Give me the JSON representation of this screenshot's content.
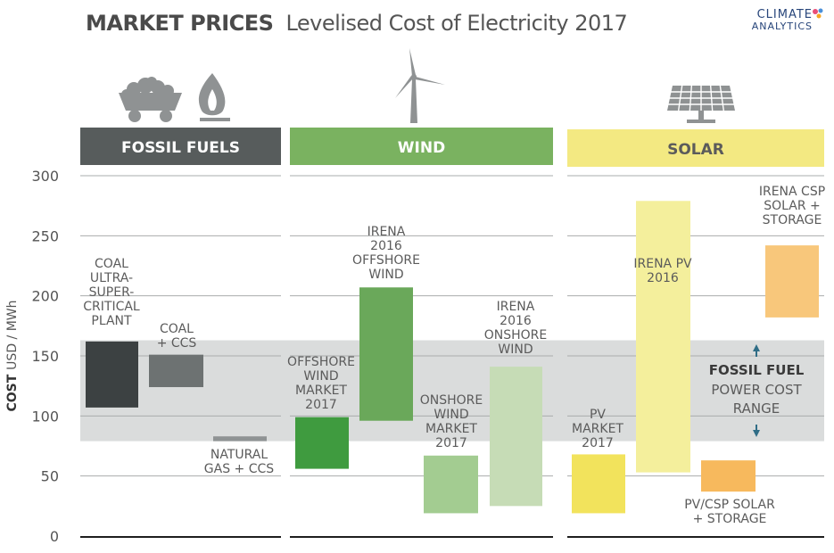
{
  "header": {
    "title_bold": "MARKET PRICES",
    "title_light": "Levelised Cost of Electricity 2017",
    "logo_line1": "CLIMATE",
    "logo_line2": "ANALYTICS"
  },
  "colors": {
    "fossil_header": "#575c5c",
    "wind_header": "#7ab260",
    "solar_header": "#f3e982",
    "band": "#dadcdc",
    "icon_gray": "#8f9293",
    "text": "#5b5b5b"
  },
  "chart_data": {
    "type": "range-bar",
    "title": "MARKET PRICES  Levelised Cost of Electricity 2017",
    "ylabel_bold": "COST",
    "ylabel": "USD / MWh",
    "ylim": [
      0,
      300
    ],
    "yticks": [
      0,
      50,
      100,
      150,
      200,
      250,
      300
    ],
    "groups": [
      {
        "name": "FOSSIL FUELS",
        "icons": [
          "coal-cart-icon",
          "gas-flame-icon"
        ]
      },
      {
        "name": "WIND",
        "icons": [
          "wind-turbine-icon"
        ]
      },
      {
        "name": "SOLAR",
        "icons": [
          "solar-panel-icon"
        ]
      }
    ],
    "fossil_fuel_range": {
      "low": 79,
      "high": 163,
      "label_bold": "FOSSIL FUEL",
      "label_lines": [
        "POWER COST",
        "RANGE"
      ]
    },
    "bars": [
      {
        "group": "FOSSIL FUELS",
        "label": [
          "COAL",
          "ULTRA-",
          "SUPER-",
          "CRITICAL",
          "PLANT"
        ],
        "low": 107,
        "high": 162,
        "color": "#3c4142"
      },
      {
        "group": "FOSSIL FUELS",
        "label": [
          "COAL",
          "+ CCS"
        ],
        "low": 124,
        "high": 151,
        "color": "#6d7272"
      },
      {
        "group": "FOSSIL FUELS",
        "label": [
          "NATURAL",
          "GAS + CCS"
        ],
        "low": 79,
        "high": 83,
        "color": "#8f9394"
      },
      {
        "group": "WIND",
        "label": [
          "OFFSHORE",
          "WIND",
          "MARKET",
          "2017"
        ],
        "low": 56,
        "high": 99,
        "color": "#3f9b3f"
      },
      {
        "group": "WIND",
        "label": [
          "IRENA",
          "2016",
          "OFFSHORE",
          "WIND"
        ],
        "low": 96,
        "high": 207,
        "color": "#6aa85a"
      },
      {
        "group": "WIND",
        "label": [
          "ONSHORE",
          "WIND",
          "MARKET",
          "2017"
        ],
        "low": 19,
        "high": 67,
        "color": "#a3cc91"
      },
      {
        "group": "WIND",
        "label": [
          "IRENA",
          "2016",
          "ONSHORE",
          "WIND"
        ],
        "low": 25,
        "high": 141,
        "color": "#c6dcb6"
      },
      {
        "group": "SOLAR",
        "label": [
          "PV",
          "MARKET",
          "2017"
        ],
        "low": 19,
        "high": 68,
        "color": "#f2e35c"
      },
      {
        "group": "SOLAR",
        "label": [
          "IRENA PV",
          "2016"
        ],
        "low": 53,
        "high": 279,
        "color": "#f4ef9c"
      },
      {
        "group": "SOLAR",
        "label": [
          "PV/CSP SOLAR",
          "+ STORAGE"
        ],
        "low": 37,
        "high": 63,
        "color": "#f7b95d"
      },
      {
        "group": "SOLAR",
        "label": [
          "IRENA CSP",
          "SOLAR +",
          "STORAGE"
        ],
        "low": 182,
        "high": 242,
        "color": "#f8c77b"
      }
    ]
  }
}
